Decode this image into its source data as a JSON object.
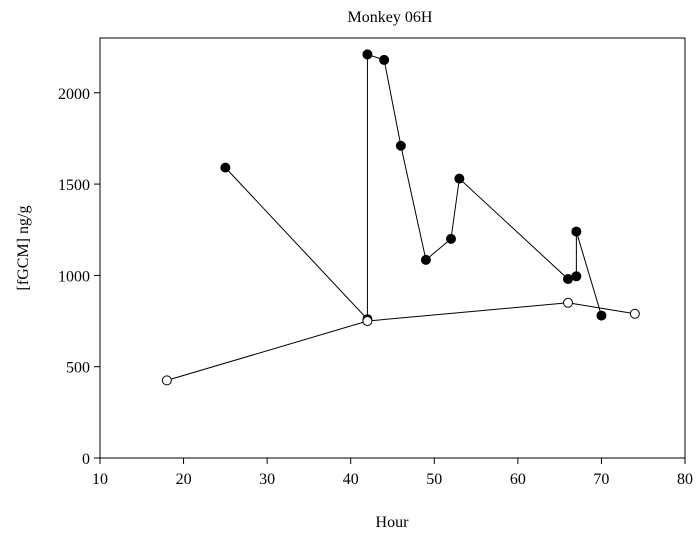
{
  "chart_data": {
    "type": "line",
    "title": "Monkey 06H",
    "xlabel": "Hour",
    "ylabel": "[fGCM] ng/g",
    "xlim": [
      10,
      80
    ],
    "ylim": [
      0,
      2300
    ],
    "xticks": [
      10,
      20,
      30,
      40,
      50,
      60,
      70,
      80
    ],
    "yticks": [
      0,
      500,
      1000,
      1500,
      2000
    ],
    "grid": false,
    "legend": "none",
    "series": [
      {
        "marker": "filled-circle",
        "color": "#000000",
        "x": [
          25,
          42,
          42,
          44,
          46,
          49,
          52,
          53,
          66,
          67,
          67,
          70
        ],
        "y": [
          1590,
          760,
          2210,
          2180,
          1710,
          1085,
          1200,
          1530,
          980,
          995,
          1240,
          780
        ]
      },
      {
        "marker": "open-circle",
        "color": "#000000",
        "x": [
          18,
          42,
          66,
          74
        ],
        "y": [
          425,
          750,
          850,
          790
        ]
      }
    ]
  }
}
